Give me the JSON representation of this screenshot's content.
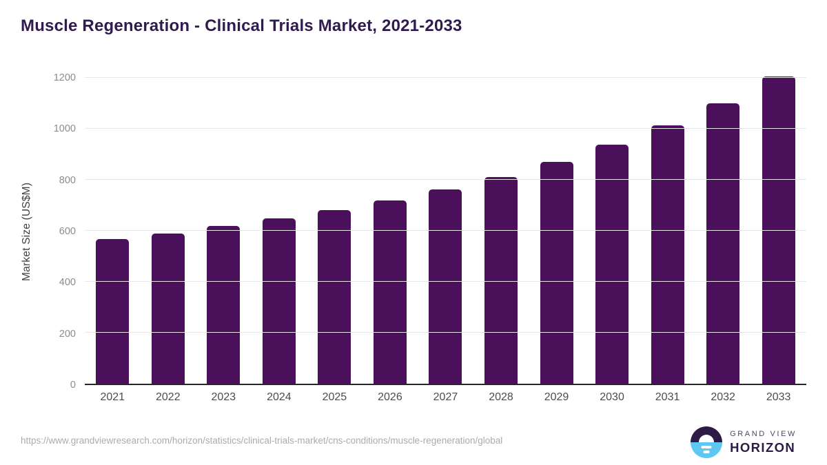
{
  "title": "Muscle Regeneration - Clinical Trials Market, 2021-2033",
  "chart_data": {
    "type": "bar",
    "categories": [
      "2021",
      "2022",
      "2023",
      "2024",
      "2025",
      "2026",
      "2027",
      "2028",
      "2029",
      "2030",
      "2031",
      "2032",
      "2033"
    ],
    "values": [
      568,
      590,
      620,
      649,
      681,
      718,
      762,
      811,
      871,
      938,
      1013,
      1101,
      1205
    ],
    "title": "Muscle Regeneration - Clinical Trials Market, 2021-2033",
    "xlabel": "",
    "ylabel": "Market Size (US$M)",
    "ylim": [
      0,
      1200
    ],
    "yticks": [
      0,
      200,
      400,
      600,
      800,
      1000,
      1200
    ],
    "grid": true,
    "legend": "none",
    "bar_color": "#4a1059"
  },
  "colors": {
    "title": "#2f1b4d",
    "bar": "#4a1059",
    "gridline": "#e8e8e8",
    "axis_line": "#262626",
    "x_tick_label": "#4c4c4c",
    "y_tick_label": "#8b8b8b",
    "url_text": "#ababab",
    "logo_purple": "#2e1a47",
    "logo_blue": "#5ec8f3"
  },
  "footer": {
    "source_url": "https://www.grandviewresearch.com/horizon/statistics/clinical-trials-market/cns-conditions/muscle-regeneration/global",
    "logo": {
      "line1": "GRAND VIEW",
      "line2": "HORIZON"
    }
  }
}
